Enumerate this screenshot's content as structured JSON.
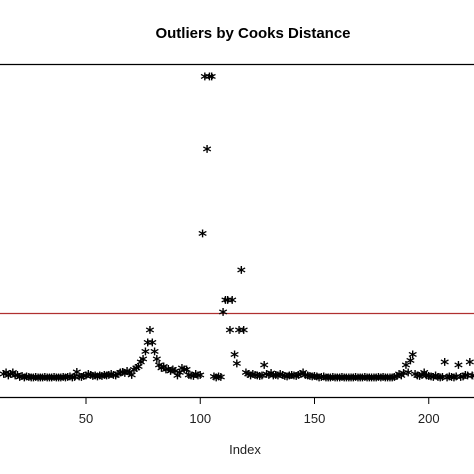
{
  "chart_data": {
    "type": "scatter",
    "title": "Outliers by Cooks Distance",
    "xlabel": "Index",
    "ylabel": "",
    "x_ticks": [
      50,
      100,
      150,
      200
    ],
    "xlim": [
      13,
      220
    ],
    "marker": "*",
    "threshold_line": {
      "color": "#b03030"
    },
    "top_line": {
      "color": "#000000"
    },
    "grid": false,
    "points": [
      {
        "x": 14,
        "y": 0.015
      },
      {
        "x": 15,
        "y": 0.02
      },
      {
        "x": 16,
        "y": 0.01
      },
      {
        "x": 17,
        "y": 0.015
      },
      {
        "x": 18,
        "y": 0.02
      },
      {
        "x": 19,
        "y": 0.01
      },
      {
        "x": 20,
        "y": 0.012
      },
      {
        "x": 21,
        "y": 0.005
      },
      {
        "x": 22,
        "y": 0.008
      },
      {
        "x": 23,
        "y": 0.004
      },
      {
        "x": 24,
        "y": 0.006
      },
      {
        "x": 25,
        "y": 0.005
      },
      {
        "x": 26,
        "y": 0.003
      },
      {
        "x": 27,
        "y": 0.004
      },
      {
        "x": 28,
        "y": 0.005
      },
      {
        "x": 29,
        "y": 0.003
      },
      {
        "x": 30,
        "y": 0.004
      },
      {
        "x": 31,
        "y": 0.003
      },
      {
        "x": 32,
        "y": 0.005
      },
      {
        "x": 33,
        "y": 0.004
      },
      {
        "x": 34,
        "y": 0.003
      },
      {
        "x": 35,
        "y": 0.004
      },
      {
        "x": 36,
        "y": 0.005
      },
      {
        "x": 37,
        "y": 0.004
      },
      {
        "x": 38,
        "y": 0.003
      },
      {
        "x": 39,
        "y": 0.004
      },
      {
        "x": 40,
        "y": 0.005
      },
      {
        "x": 41,
        "y": 0.004
      },
      {
        "x": 42,
        "y": 0.005
      },
      {
        "x": 43,
        "y": 0.006
      },
      {
        "x": 44,
        "y": 0.004
      },
      {
        "x": 45,
        "y": 0.005
      },
      {
        "x": 46,
        "y": 0.022
      },
      {
        "x": 47,
        "y": 0.006
      },
      {
        "x": 48,
        "y": 0.005
      },
      {
        "x": 49,
        "y": 0.008
      },
      {
        "x": 50,
        "y": 0.01
      },
      {
        "x": 51,
        "y": 0.015
      },
      {
        "x": 52,
        "y": 0.012
      },
      {
        "x": 53,
        "y": 0.008
      },
      {
        "x": 54,
        "y": 0.01
      },
      {
        "x": 55,
        "y": 0.007
      },
      {
        "x": 56,
        "y": 0.01
      },
      {
        "x": 57,
        "y": 0.008
      },
      {
        "x": 58,
        "y": 0.012
      },
      {
        "x": 59,
        "y": 0.01
      },
      {
        "x": 60,
        "y": 0.012
      },
      {
        "x": 61,
        "y": 0.015
      },
      {
        "x": 62,
        "y": 0.012
      },
      {
        "x": 63,
        "y": 0.01
      },
      {
        "x": 64,
        "y": 0.015
      },
      {
        "x": 65,
        "y": 0.02
      },
      {
        "x": 66,
        "y": 0.022
      },
      {
        "x": 67,
        "y": 0.018
      },
      {
        "x": 68,
        "y": 0.025
      },
      {
        "x": 69,
        "y": 0.02
      },
      {
        "x": 70,
        "y": 0.012
      },
      {
        "x": 71,
        "y": 0.03
      },
      {
        "x": 72,
        "y": 0.035
      },
      {
        "x": 73,
        "y": 0.04
      },
      {
        "x": 74,
        "y": 0.055
      },
      {
        "x": 75,
        "y": 0.065
      },
      {
        "x": 76,
        "y": 0.09
      },
      {
        "x": 77,
        "y": 0.12
      },
      {
        "x": 78,
        "y": 0.16
      },
      {
        "x": 79,
        "y": 0.12
      },
      {
        "x": 80,
        "y": 0.09
      },
      {
        "x": 81,
        "y": 0.065
      },
      {
        "x": 82,
        "y": 0.045
      },
      {
        "x": 83,
        "y": 0.035
      },
      {
        "x": 84,
        "y": 0.04
      },
      {
        "x": 85,
        "y": 0.03
      },
      {
        "x": 86,
        "y": 0.032
      },
      {
        "x": 87,
        "y": 0.025
      },
      {
        "x": 88,
        "y": 0.03
      },
      {
        "x": 89,
        "y": 0.025
      },
      {
        "x": 90,
        "y": 0.01
      },
      {
        "x": 91,
        "y": 0.02
      },
      {
        "x": 92,
        "y": 0.035
      },
      {
        "x": 93,
        "y": 0.03
      },
      {
        "x": 94,
        "y": 0.03
      },
      {
        "x": 95,
        "y": 0.012
      },
      {
        "x": 96,
        "y": 0.01
      },
      {
        "x": 97,
        "y": 0.008
      },
      {
        "x": 98,
        "y": 0.015
      },
      {
        "x": 99,
        "y": 0.01
      },
      {
        "x": 100,
        "y": 0.012
      },
      {
        "x": 101,
        "y": 0.48
      },
      {
        "x": 102,
        "y": 1.0
      },
      {
        "x": 103,
        "y": 0.76
      },
      {
        "x": 104,
        "y": 1.0
      },
      {
        "x": 105,
        "y": 1.0
      },
      {
        "x": 106,
        "y": 0.006
      },
      {
        "x": 107,
        "y": 0.004
      },
      {
        "x": 108,
        "y": 0.006
      },
      {
        "x": 109,
        "y": 0.005
      },
      {
        "x": 110,
        "y": 0.22
      },
      {
        "x": 111,
        "y": 0.26
      },
      {
        "x": 112,
        "y": 0.26
      },
      {
        "x": 113,
        "y": 0.16
      },
      {
        "x": 114,
        "y": 0.26
      },
      {
        "x": 115,
        "y": 0.08
      },
      {
        "x": 116,
        "y": 0.05
      },
      {
        "x": 117,
        "y": 0.16
      },
      {
        "x": 118,
        "y": 0.36
      },
      {
        "x": 119,
        "y": 0.16
      },
      {
        "x": 120,
        "y": 0.02
      },
      {
        "x": 121,
        "y": 0.015
      },
      {
        "x": 122,
        "y": 0.01
      },
      {
        "x": 123,
        "y": 0.015
      },
      {
        "x": 124,
        "y": 0.012
      },
      {
        "x": 125,
        "y": 0.01
      },
      {
        "x": 126,
        "y": 0.008
      },
      {
        "x": 127,
        "y": 0.01
      },
      {
        "x": 128,
        "y": 0.045
      },
      {
        "x": 129,
        "y": 0.015
      },
      {
        "x": 130,
        "y": 0.012
      },
      {
        "x": 131,
        "y": 0.018
      },
      {
        "x": 132,
        "y": 0.01
      },
      {
        "x": 133,
        "y": 0.012
      },
      {
        "x": 134,
        "y": 0.01
      },
      {
        "x": 135,
        "y": 0.015
      },
      {
        "x": 136,
        "y": 0.012
      },
      {
        "x": 137,
        "y": 0.008
      },
      {
        "x": 138,
        "y": 0.006
      },
      {
        "x": 139,
        "y": 0.01
      },
      {
        "x": 140,
        "y": 0.012
      },
      {
        "x": 141,
        "y": 0.01
      },
      {
        "x": 142,
        "y": 0.008
      },
      {
        "x": 143,
        "y": 0.012
      },
      {
        "x": 144,
        "y": 0.015
      },
      {
        "x": 145,
        "y": 0.02
      },
      {
        "x": 146,
        "y": 0.012
      },
      {
        "x": 147,
        "y": 0.01
      },
      {
        "x": 148,
        "y": 0.008
      },
      {
        "x": 149,
        "y": 0.006
      },
      {
        "x": 150,
        "y": 0.008
      },
      {
        "x": 151,
        "y": 0.006
      },
      {
        "x": 152,
        "y": 0.004
      },
      {
        "x": 153,
        "y": 0.005
      },
      {
        "x": 154,
        "y": 0.006
      },
      {
        "x": 155,
        "y": 0.004
      },
      {
        "x": 156,
        "y": 0.003
      },
      {
        "x": 157,
        "y": 0.004
      },
      {
        "x": 158,
        "y": 0.005
      },
      {
        "x": 159,
        "y": 0.004
      },
      {
        "x": 160,
        "y": 0.004
      },
      {
        "x": 161,
        "y": 0.003
      },
      {
        "x": 162,
        "y": 0.005
      },
      {
        "x": 163,
        "y": 0.004
      },
      {
        "x": 164,
        "y": 0.003
      },
      {
        "x": 165,
        "y": 0.004
      },
      {
        "x": 166,
        "y": 0.004
      },
      {
        "x": 167,
        "y": 0.003
      },
      {
        "x": 168,
        "y": 0.005
      },
      {
        "x": 169,
        "y": 0.004
      },
      {
        "x": 170,
        "y": 0.004
      },
      {
        "x": 171,
        "y": 0.003
      },
      {
        "x": 172,
        "y": 0.005
      },
      {
        "x": 173,
        "y": 0.004
      },
      {
        "x": 174,
        "y": 0.003
      },
      {
        "x": 175,
        "y": 0.004
      },
      {
        "x": 176,
        "y": 0.004
      },
      {
        "x": 177,
        "y": 0.003
      },
      {
        "x": 178,
        "y": 0.005
      },
      {
        "x": 179,
        "y": 0.004
      },
      {
        "x": 180,
        "y": 0.005
      },
      {
        "x": 181,
        "y": 0.003
      },
      {
        "x": 182,
        "y": 0.004
      },
      {
        "x": 183,
        "y": 0.003
      },
      {
        "x": 184,
        "y": 0.004
      },
      {
        "x": 185,
        "y": 0.005
      },
      {
        "x": 186,
        "y": 0.008
      },
      {
        "x": 187,
        "y": 0.015
      },
      {
        "x": 188,
        "y": 0.01
      },
      {
        "x": 189,
        "y": 0.018
      },
      {
        "x": 190,
        "y": 0.045
      },
      {
        "x": 191,
        "y": 0.02
      },
      {
        "x": 192,
        "y": 0.06
      },
      {
        "x": 193,
        "y": 0.08
      },
      {
        "x": 194,
        "y": 0.015
      },
      {
        "x": 195,
        "y": 0.01
      },
      {
        "x": 196,
        "y": 0.008
      },
      {
        "x": 197,
        "y": 0.012
      },
      {
        "x": 198,
        "y": 0.02
      },
      {
        "x": 199,
        "y": 0.01
      },
      {
        "x": 200,
        "y": 0.008
      },
      {
        "x": 201,
        "y": 0.006
      },
      {
        "x": 202,
        "y": 0.005
      },
      {
        "x": 203,
        "y": 0.01
      },
      {
        "x": 204,
        "y": 0.005
      },
      {
        "x": 205,
        "y": 0.004
      },
      {
        "x": 206,
        "y": 0.005
      },
      {
        "x": 207,
        "y": 0.055
      },
      {
        "x": 208,
        "y": 0.004
      },
      {
        "x": 209,
        "y": 0.006
      },
      {
        "x": 210,
        "y": 0.005
      },
      {
        "x": 211,
        "y": 0.004
      },
      {
        "x": 212,
        "y": 0.006
      },
      {
        "x": 213,
        "y": 0.045
      },
      {
        "x": 214,
        "y": 0.005
      },
      {
        "x": 215,
        "y": 0.006
      },
      {
        "x": 216,
        "y": 0.012
      },
      {
        "x": 217,
        "y": 0.01
      },
      {
        "x": 218,
        "y": 0.055
      },
      {
        "x": 219,
        "y": 0.01
      },
      {
        "x": 220,
        "y": 0.008
      }
    ]
  }
}
